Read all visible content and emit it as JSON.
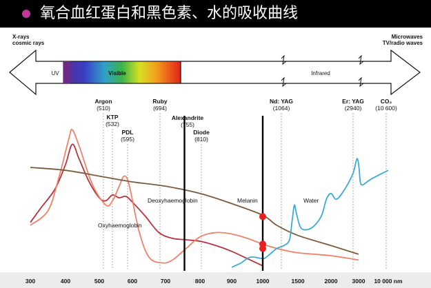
{
  "slide": {
    "title": "氧合血红蛋白和黑色素、水的吸收曲线",
    "bullet_color": "#c0389c"
  },
  "spectrum": {
    "left_label": [
      "X-rays",
      "cosmic rays"
    ],
    "right_label": [
      "Microwaves",
      "TV/radio waves"
    ],
    "bands": [
      "UV",
      "Visible",
      "Infrared"
    ]
  },
  "chart_data": {
    "type": "line",
    "x_axis": {
      "unit": "nm",
      "ticks": [
        "300",
        "400",
        "500",
        "600",
        "700",
        "800",
        "900",
        "1000",
        "1500",
        "2000",
        "3000",
        "10 000 nm"
      ]
    },
    "lasers": [
      {
        "name": "Argon",
        "wavelength": "(510)"
      },
      {
        "name": "KTP",
        "wavelength": "(532)"
      },
      {
        "name": "PDL",
        "wavelength": "(595)"
      },
      {
        "name": "Ruby",
        "wavelength": "(694)"
      },
      {
        "name": "Alexandrite",
        "wavelength": "(755)"
      },
      {
        "name": "Diode",
        "wavelength": "(810)"
      },
      {
        "name": "Nd: YAG",
        "wavelength": "(1064)"
      },
      {
        "name": "Er: YAG",
        "wavelength": "(2940)"
      },
      {
        "name": "CO₂",
        "wavelength": "(10 600)"
      }
    ],
    "series_labels": {
      "deoxy": "Deoxyhaemoglobin",
      "oxy": "Oxyhaemoglobin",
      "melanin": "Melanin",
      "water": "Water"
    },
    "series": [
      {
        "key": "deoxy",
        "color": "#b8323c",
        "x": [
          300,
          330,
          370,
          400,
          420,
          440,
          470,
          500,
          520,
          540,
          560,
          580,
          600,
          640,
          680,
          720,
          760,
          800,
          850,
          900,
          950,
          1000
        ],
        "y": [
          0.32,
          0.42,
          0.55,
          0.72,
          0.86,
          0.76,
          0.6,
          0.49,
          0.47,
          0.51,
          0.49,
          0.5,
          0.46,
          0.36,
          0.25,
          0.21,
          0.2,
          0.19,
          0.16,
          0.12,
          0.07,
          0.02
        ]
      },
      {
        "key": "oxy",
        "color": "#f08068",
        "x": [
          300,
          350,
          380,
          410,
          420,
          440,
          480,
          520,
          540,
          560,
          575,
          590,
          620,
          650,
          690,
          720,
          760,
          800,
          850,
          900,
          950,
          1000,
          1200,
          1500,
          2000,
          3000
        ],
        "y": [
          0.3,
          0.4,
          0.62,
          0.9,
          0.96,
          0.85,
          0.58,
          0.44,
          0.47,
          0.57,
          0.64,
          0.58,
          0.26,
          0.08,
          0.04,
          0.06,
          0.14,
          0.22,
          0.25,
          0.24,
          0.21,
          0.17,
          0.14,
          0.11,
          0.09,
          0.06
        ]
      },
      {
        "key": "melanin",
        "color": "#7b5a3a",
        "x": [
          300,
          400,
          500,
          600,
          700,
          800,
          900,
          1000,
          1200,
          1500,
          2000,
          3000
        ],
        "y": [
          0.7,
          0.68,
          0.64,
          0.6,
          0.57,
          0.52,
          0.45,
          0.37,
          0.3,
          0.23,
          0.16,
          0.1
        ]
      },
      {
        "key": "water",
        "color": "#3aaad8",
        "x": [
          900,
          930,
          960,
          1000,
          1050,
          1100,
          1200,
          1300,
          1380,
          1420,
          1450,
          1480,
          1550,
          1700,
          1850,
          1930,
          2000,
          2200,
          2500,
          2800,
          2940,
          3100,
          3400,
          4000,
          6000,
          10000
        ],
        "y": [
          0.01,
          0.04,
          0.08,
          0.07,
          0.08,
          0.1,
          0.14,
          0.16,
          0.2,
          0.34,
          0.44,
          0.38,
          0.28,
          0.28,
          0.36,
          0.48,
          0.52,
          0.48,
          0.55,
          0.66,
          0.76,
          0.7,
          0.6,
          0.58,
          0.62,
          0.68
        ]
      }
    ],
    "markers": [
      {
        "x": 1000,
        "y": 0.36
      },
      {
        "x": 1000,
        "y": 0.17
      },
      {
        "x": 1000,
        "y": 0.14
      }
    ],
    "vertical_lines": [
      755,
      1000
    ],
    "colors": {
      "marker": "#e8201e",
      "vertical_line": "#000000",
      "axis_bg": "#ececec"
    }
  }
}
